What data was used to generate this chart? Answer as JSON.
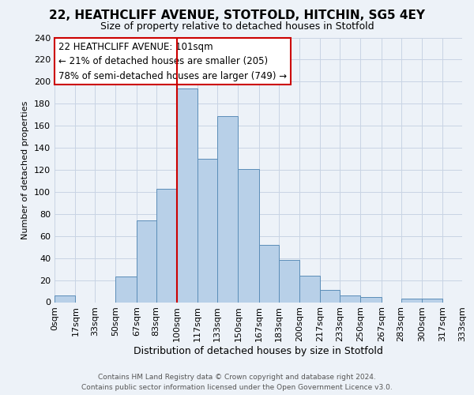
{
  "title": "22, HEATHCLIFF AVENUE, STOTFOLD, HITCHIN, SG5 4EY",
  "subtitle": "Size of property relative to detached houses in Stotfold",
  "xlabel": "Distribution of detached houses by size in Stotfold",
  "ylabel": "Number of detached properties",
  "footer_line1": "Contains HM Land Registry data © Crown copyright and database right 2024.",
  "footer_line2": "Contains public sector information licensed under the Open Government Licence v3.0.",
  "bar_edges": [
    0,
    17,
    33,
    50,
    67,
    83,
    100,
    117,
    133,
    150,
    167,
    183,
    200,
    217,
    233,
    250,
    267,
    283,
    300,
    317,
    333
  ],
  "bar_heights": [
    6,
    0,
    0,
    23,
    74,
    103,
    194,
    130,
    169,
    121,
    52,
    38,
    24,
    11,
    6,
    5,
    0,
    3,
    3,
    0
  ],
  "bar_color": "#b8d0e8",
  "bar_edgecolor": "#5b8db8",
  "grid_color": "#c8d4e4",
  "bg_color": "#edf2f8",
  "vline_x": 100,
  "vline_color": "#cc0000",
  "ann_line1": "22 HEATHCLIFF AVENUE: 101sqm",
  "ann_line2": "← 21% of detached houses are smaller (205)",
  "ann_line3": "78% of semi-detached houses are larger (749) →",
  "annotation_box_edgecolor": "#cc0000",
  "annotation_box_facecolor": "#ffffff",
  "tick_labels": [
    "0sqm",
    "17sqm",
    "33sqm",
    "50sqm",
    "67sqm",
    "83sqm",
    "100sqm",
    "117sqm",
    "133sqm",
    "150sqm",
    "167sqm",
    "183sqm",
    "200sqm",
    "217sqm",
    "233sqm",
    "250sqm",
    "267sqm",
    "283sqm",
    "300sqm",
    "317sqm",
    "333sqm"
  ],
  "ylim": [
    0,
    240
  ],
  "yticks": [
    0,
    20,
    40,
    60,
    80,
    100,
    120,
    140,
    160,
    180,
    200,
    220,
    240
  ],
  "title_fontsize": 11,
  "subtitle_fontsize": 9,
  "ylabel_fontsize": 8,
  "xlabel_fontsize": 9,
  "ytick_fontsize": 8,
  "xtick_fontsize": 7,
  "footer_fontsize": 6.5,
  "ann_fontsize": 8.5
}
